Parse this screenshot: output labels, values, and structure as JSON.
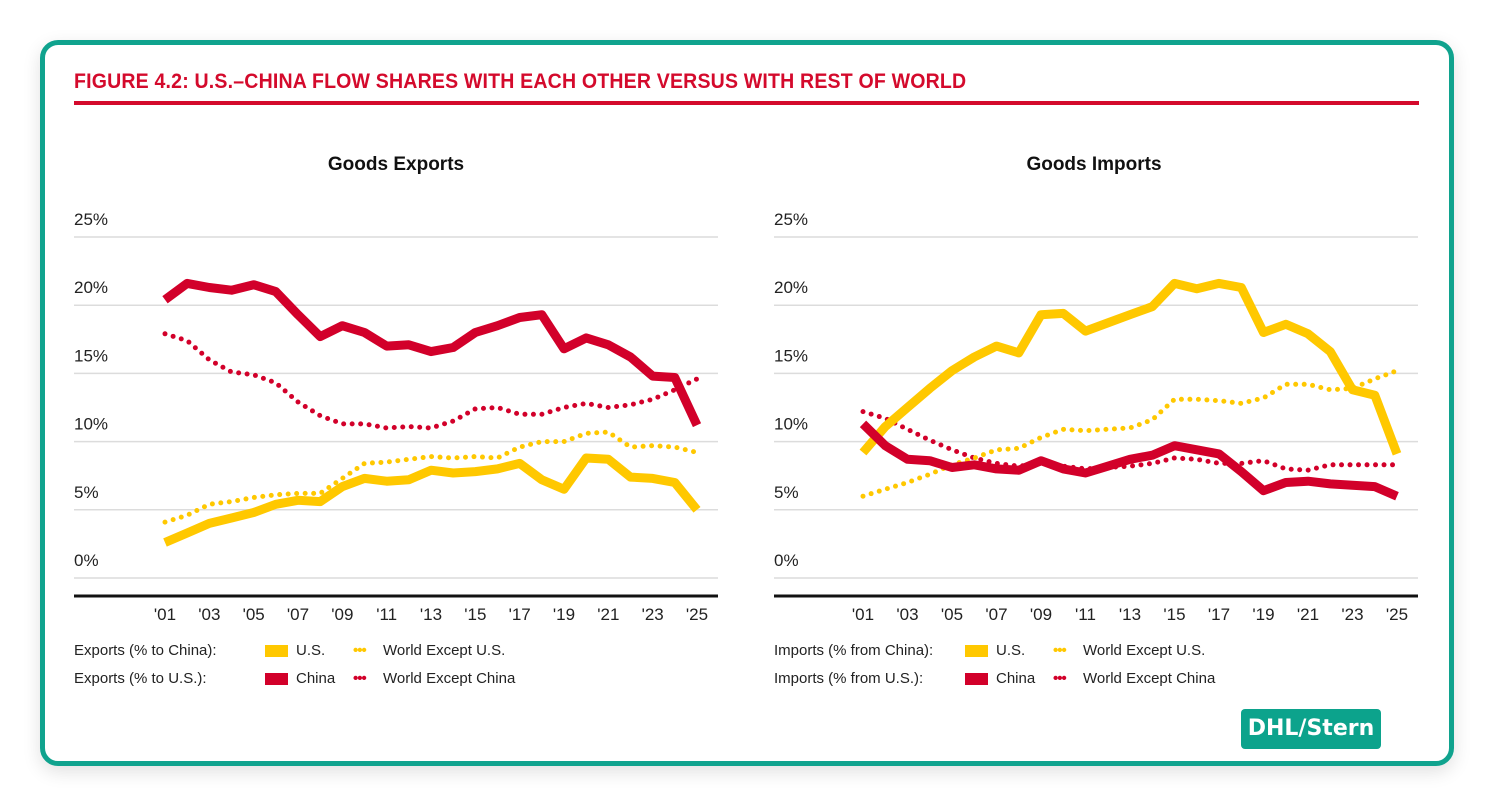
{
  "figure_title": "FIGURE 4.2: U.S.–CHINA FLOW SHARES WITH EACH OTHER VERSUS WITH REST OF WORLD",
  "source_badge": "DHL/Stern",
  "colors": {
    "frame": "#10a38e",
    "title": "#d40a2c",
    "us": "#ffc800",
    "china": "#d2002a"
  },
  "chart_data": [
    {
      "type": "line",
      "title": "Goods Exports",
      "x": [
        2001,
        2002,
        2003,
        2004,
        2005,
        2006,
        2007,
        2008,
        2009,
        2010,
        2011,
        2012,
        2013,
        2014,
        2015,
        2016,
        2017,
        2018,
        2019,
        2020,
        2021,
        2022,
        2023,
        2024,
        2025
      ],
      "x_tick_labels": [
        "'01",
        "'03",
        "'05",
        "'07",
        "'09",
        "'11",
        "'13",
        "'15",
        "'17",
        "'19",
        "'21",
        "'23",
        "'25"
      ],
      "y_tick_labels": [
        "25%",
        "20%",
        "15%",
        "10%",
        "5%",
        "0%"
      ],
      "ylim": [
        0,
        25
      ],
      "grid": true,
      "legend_groups": [
        {
          "label": "Exports (% to China):",
          "solid": "U.S.",
          "dotted": "World Except U.S."
        },
        {
          "label": "Exports (% to U.S.):",
          "solid": "China",
          "dotted": "World Except China"
        }
      ],
      "series": [
        {
          "name": "U.S.",
          "style": "solid",
          "color": "#ffc800",
          "values": [
            2.6,
            3.3,
            4.0,
            4.4,
            4.8,
            5.4,
            5.7,
            5.6,
            6.7,
            7.3,
            7.1,
            7.2,
            7.9,
            7.7,
            7.8,
            8.0,
            8.4,
            7.2,
            6.5,
            8.8,
            8.7,
            7.4,
            7.3,
            7.0,
            5.0
          ]
        },
        {
          "name": "World Except U.S.",
          "style": "dotted",
          "color": "#ffc800",
          "values": [
            4.1,
            4.6,
            5.4,
            5.6,
            5.9,
            6.1,
            6.2,
            6.2,
            7.3,
            8.4,
            8.5,
            8.7,
            8.9,
            8.8,
            8.9,
            8.8,
            9.6,
            10.0,
            10.0,
            10.6,
            10.7,
            9.6,
            9.7,
            9.6,
            9.2
          ]
        },
        {
          "name": "China",
          "style": "solid",
          "color": "#d2002a",
          "values": [
            20.4,
            21.6,
            21.3,
            21.1,
            21.5,
            21.0,
            19.3,
            17.7,
            18.5,
            18.0,
            17.0,
            17.1,
            16.6,
            16.9,
            18.0,
            18.5,
            19.1,
            19.3,
            16.8,
            17.6,
            17.1,
            16.2,
            14.8,
            14.7,
            11.2
          ]
        },
        {
          "name": "World Except China",
          "style": "dotted",
          "color": "#d2002a",
          "values": [
            17.9,
            17.4,
            16.0,
            15.1,
            14.9,
            14.3,
            12.9,
            11.9,
            11.3,
            11.3,
            11.0,
            11.1,
            11.0,
            11.5,
            12.4,
            12.5,
            12.0,
            12.0,
            12.5,
            12.8,
            12.5,
            12.7,
            13.1,
            13.8,
            14.6
          ]
        }
      ]
    },
    {
      "type": "line",
      "title": "Goods Imports",
      "x": [
        2001,
        2002,
        2003,
        2004,
        2005,
        2006,
        2007,
        2008,
        2009,
        2010,
        2011,
        2012,
        2013,
        2014,
        2015,
        2016,
        2017,
        2018,
        2019,
        2020,
        2021,
        2022,
        2023,
        2024,
        2025
      ],
      "x_tick_labels": [
        "'01",
        "'03",
        "'05",
        "'07",
        "'09",
        "'11",
        "'13",
        "'15",
        "'17",
        "'19",
        "'21",
        "'23",
        "'25"
      ],
      "y_tick_labels": [
        "25%",
        "20%",
        "15%",
        "10%",
        "5%",
        "0%"
      ],
      "ylim": [
        0,
        25
      ],
      "grid": true,
      "legend_groups": [
        {
          "label": "Imports (% from China):",
          "solid": "U.S.",
          "dotted": "World Except U.S."
        },
        {
          "label": "Imports (% from U.S.):",
          "solid": "China",
          "dotted": "World Except China"
        }
      ],
      "series": [
        {
          "name": "U.S.",
          "style": "solid",
          "color": "#ffc800",
          "values": [
            9.2,
            11.1,
            12.5,
            13.9,
            15.2,
            16.2,
            17.0,
            16.5,
            19.3,
            19.4,
            18.1,
            18.7,
            19.3,
            19.9,
            21.6,
            21.2,
            21.6,
            21.3,
            18.0,
            18.6,
            17.9,
            16.6,
            13.8,
            13.4,
            9.1
          ]
        },
        {
          "name": "World Except U.S.",
          "style": "dotted",
          "color": "#ffc800",
          "values": [
            6.0,
            6.5,
            7.0,
            7.6,
            8.3,
            8.8,
            9.4,
            9.5,
            10.3,
            10.9,
            10.8,
            10.9,
            11.0,
            11.6,
            13.1,
            13.1,
            13.0,
            12.8,
            13.2,
            14.2,
            14.2,
            13.8,
            13.9,
            14.6,
            15.2
          ]
        },
        {
          "name": "China",
          "style": "solid",
          "color": "#d2002a",
          "values": [
            11.3,
            9.7,
            8.7,
            8.6,
            8.1,
            8.3,
            8.0,
            7.9,
            8.6,
            8.0,
            7.7,
            8.2,
            8.7,
            9.0,
            9.7,
            9.4,
            9.1,
            7.8,
            6.4,
            7.0,
            7.1,
            6.9,
            6.8,
            6.7,
            6.0
          ]
        },
        {
          "name": "World Except China",
          "style": "dotted",
          "color": "#d2002a",
          "values": [
            12.2,
            11.7,
            10.9,
            10.1,
            9.4,
            8.8,
            8.4,
            8.2,
            8.4,
            8.2,
            8.0,
            8.1,
            8.2,
            8.4,
            8.8,
            8.7,
            8.4,
            8.4,
            8.6,
            8.0,
            7.9,
            8.3,
            8.3,
            8.3,
            8.3
          ]
        }
      ]
    }
  ]
}
